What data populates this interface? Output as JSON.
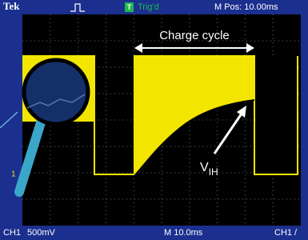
{
  "header": {
    "brand": "Tek",
    "trigger_badge": "T",
    "trigger_status": "Trig'd",
    "position": "M Pos: 10.00ms"
  },
  "annotations": {
    "charge_cycle": "Charge cycle",
    "v_label": "V",
    "v_subscript": "IH"
  },
  "markers": {
    "channel_level": "1"
  },
  "footer": {
    "channel": "CH1",
    "scale": "500mV",
    "timebase": "M 10.0ms",
    "trigger": "CH1 /"
  }
}
